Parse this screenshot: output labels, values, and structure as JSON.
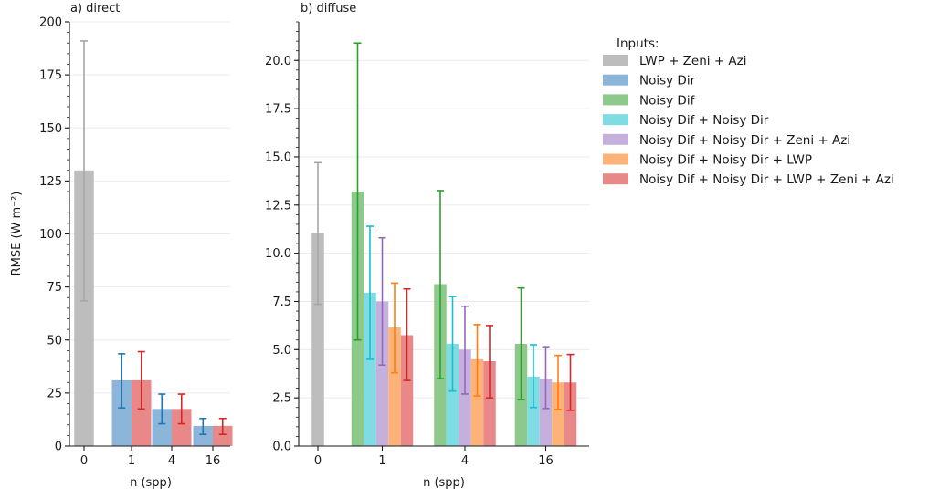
{
  "chart_data": [
    {
      "type": "bar",
      "title": "a) direct",
      "xlabel": "n (spp)",
      "ylabel": "RMSE (W m⁻²)",
      "ylim": [
        0,
        200
      ],
      "yticks": [
        0,
        25,
        50,
        75,
        100,
        125,
        150,
        175,
        200
      ],
      "ytick_labels": [
        "0",
        "25",
        "50",
        "75",
        "100",
        "125",
        "150",
        "175",
        "200"
      ],
      "grid": true,
      "groups": [
        {
          "label": "0",
          "bars": [
            {
              "series": 0,
              "value": 130,
              "err_low": 68.5,
              "err_high": 191
            }
          ]
        },
        {
          "label": "1",
          "bars": [
            {
              "series": 1,
              "value": 31,
              "err_low": 18,
              "err_high": 43.5
            },
            {
              "series": 6,
              "value": 31,
              "err_low": 17.5,
              "err_high": 44.5
            }
          ]
        },
        {
          "label": "4",
          "bars": [
            {
              "series": 1,
              "value": 17.5,
              "err_low": 10.5,
              "err_high": 24.5
            },
            {
              "series": 6,
              "value": 17.5,
              "err_low": 10.5,
              "err_high": 24.5
            }
          ]
        },
        {
          "label": "16",
          "bars": [
            {
              "series": 1,
              "value": 9.5,
              "err_low": 5.5,
              "err_high": 13
            },
            {
              "series": 6,
              "value": 9.5,
              "err_low": 5.5,
              "err_high": 13
            }
          ]
        }
      ]
    },
    {
      "type": "bar",
      "title": "b) diffuse",
      "xlabel": "n (spp)",
      "ylabel": "",
      "ylim": [
        0,
        22
      ],
      "yticks": [
        0,
        2.5,
        5,
        7.5,
        10,
        12.5,
        15,
        17.5,
        20
      ],
      "ytick_labels": [
        "0.0",
        "2.5",
        "5.0",
        "7.5",
        "10.0",
        "12.5",
        "15.0",
        "17.5",
        "20.0"
      ],
      "grid": true,
      "groups": [
        {
          "label": "0",
          "bars": [
            {
              "series": 0,
              "value": 11.05,
              "err_low": 7.35,
              "err_high": 14.7
            }
          ]
        },
        {
          "label": "1",
          "bars": [
            {
              "series": 2,
              "value": 13.2,
              "err_low": 5.5,
              "err_high": 20.9
            },
            {
              "series": 3,
              "value": 7.95,
              "err_low": 4.5,
              "err_high": 11.4
            },
            {
              "series": 4,
              "value": 7.5,
              "err_low": 4.2,
              "err_high": 10.8
            },
            {
              "series": 5,
              "value": 6.15,
              "err_low": 3.8,
              "err_high": 8.45
            },
            {
              "series": 6,
              "value": 5.75,
              "err_low": 3.4,
              "err_high": 8.15
            }
          ]
        },
        {
          "label": "4",
          "bars": [
            {
              "series": 2,
              "value": 8.4,
              "err_low": 3.5,
              "err_high": 13.25
            },
            {
              "series": 3,
              "value": 5.3,
              "err_low": 2.85,
              "err_high": 7.75
            },
            {
              "series": 4,
              "value": 5.0,
              "err_low": 2.7,
              "err_high": 7.25
            },
            {
              "series": 5,
              "value": 4.5,
              "err_low": 2.6,
              "err_high": 6.3
            },
            {
              "series": 6,
              "value": 4.4,
              "err_low": 2.5,
              "err_high": 6.25
            }
          ]
        },
        {
          "label": "16",
          "bars": [
            {
              "series": 2,
              "value": 5.3,
              "err_low": 2.4,
              "err_high": 8.2
            },
            {
              "series": 3,
              "value": 3.6,
              "err_low": 2.0,
              "err_high": 5.25
            },
            {
              "series": 4,
              "value": 3.5,
              "err_low": 1.95,
              "err_high": 5.15
            },
            {
              "series": 5,
              "value": 3.3,
              "err_low": 1.9,
              "err_high": 4.7
            },
            {
              "series": 6,
              "value": 3.3,
              "err_low": 1.85,
              "err_high": 4.75
            }
          ]
        }
      ]
    }
  ],
  "legend": {
    "title": "Inputs:",
    "placement": "right",
    "items": [
      {
        "name": "LWP + Zeni + Azi",
        "color": "#a6a6a6",
        "bar_color": "#bdbdbd"
      },
      {
        "name": "Noisy Dir",
        "color": "#1f77b4",
        "bar_color": "#8bb5d9"
      },
      {
        "name": "Noisy Dif",
        "color": "#2ca02c",
        "bar_color": "#8cc98a"
      },
      {
        "name": "Noisy Dif + Noisy Dir",
        "color": "#17becf",
        "bar_color": "#7fdce3"
      },
      {
        "name": "Noisy Dif + Noisy Dir + Zeni + Azi",
        "color": "#9467bd",
        "bar_color": "#c5b0dd"
      },
      {
        "name": "Noisy Dif + Noisy Dir + LWP",
        "color": "#ff7f0e",
        "bar_color": "#fdb377"
      },
      {
        "name": "Noisy Dif + Noisy Dir + LWP + Zeni + Azi",
        "color": "#d62728",
        "bar_color": "#e98889"
      }
    ]
  }
}
